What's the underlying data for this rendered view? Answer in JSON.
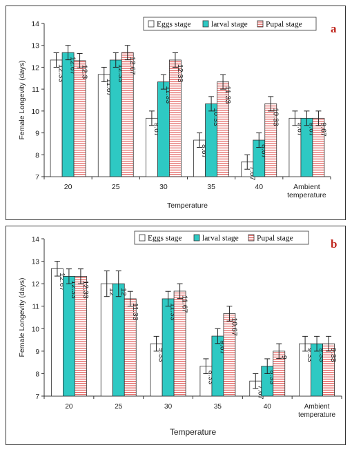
{
  "chart_data": [
    {
      "type": "bar",
      "panel_label": "a",
      "ylabel": "Female Longevity (days)",
      "xlabel": "Temperature",
      "ylim": [
        7,
        14
      ],
      "yticks": [
        "7",
        "8",
        "9",
        "10",
        "11",
        "12",
        "13",
        "14"
      ],
      "categories": [
        "20",
        "25",
        "30",
        "35",
        "40",
        [
          "Ambient",
          "temperature"
        ]
      ],
      "series": [
        {
          "name": "Eggs stage",
          "values": [
            12.33,
            11.67,
            9.67,
            8.67,
            7.67,
            9.67
          ],
          "errors": [
            0.33,
            0.33,
            0.33,
            0.33,
            0.33,
            0.33
          ],
          "labels": [
            "12.33",
            "11.67",
            "9.67",
            "8.67",
            "7.67",
            "9.67"
          ]
        },
        {
          "name": "larval stage",
          "values": [
            12.67,
            12.33,
            11.33,
            10.33,
            8.67,
            9.67
          ],
          "errors": [
            0.33,
            0.33,
            0.33,
            0.33,
            0.33,
            0.33
          ],
          "labels": [
            "12.67",
            "12.33",
            "11.33",
            "10.33",
            "8.67",
            "9.67"
          ]
        },
        {
          "name": "Pupal stage",
          "values": [
            12.3,
            12.67,
            12.33,
            11.33,
            10.33,
            9.67
          ],
          "errors": [
            0.33,
            0.33,
            0.33,
            0.33,
            0.33,
            0.33
          ],
          "labels": [
            "12.3",
            "12.67",
            "12.33",
            "11.33",
            "10.33",
            "9.67"
          ]
        }
      ],
      "legend_position": "top-right",
      "grid": false,
      "colors": {
        "eggs": "#ffffff",
        "larval": "#2ec9c3",
        "pupal_stripe": "#e0504d",
        "bar_edge": "#333333",
        "panel_letter": "#c0271f"
      }
    },
    {
      "type": "bar",
      "panel_label": "b",
      "ylabel": "Female Longevity (days)",
      "xlabel": "Temperature",
      "ylim": [
        7,
        14
      ],
      "yticks": [
        "7",
        "8",
        "9",
        "10",
        "11",
        "12",
        "13",
        "14"
      ],
      "categories": [
        "20",
        "25",
        "30",
        "35",
        "40",
        [
          "Ambient",
          "temperature"
        ]
      ],
      "series": [
        {
          "name": "Eggs stage",
          "values": [
            12.67,
            12,
            9.33,
            8.33,
            7.67,
            9.33
          ],
          "errors": [
            0.33,
            0.57,
            0.33,
            0.33,
            0.33,
            0.33
          ],
          "labels": [
            "12.67",
            "12",
            "9.33",
            "8.33",
            "7.67",
            "9.33"
          ]
        },
        {
          "name": "larval stage",
          "values": [
            12.33,
            12,
            11.33,
            9.67,
            8.33,
            9.33
          ],
          "errors": [
            0.33,
            0.57,
            0.33,
            0.33,
            0.33,
            0.33
          ],
          "labels": [
            "12.33",
            "12",
            "11.33",
            "9.67",
            "8.33",
            "9.33"
          ]
        },
        {
          "name": "Pupal stage",
          "values": [
            12.33,
            11.33,
            11.67,
            10.67,
            9,
            9.33
          ],
          "errors": [
            0.33,
            0.33,
            0.33,
            0.33,
            0.33,
            0.33
          ],
          "labels": [
            "12.33",
            "11.33",
            "11.67",
            "10.67",
            "9",
            "9.33"
          ]
        }
      ],
      "legend_position": "top-right",
      "grid": false,
      "colors": {
        "eggs": "#ffffff",
        "larval": "#2ec9c3",
        "pupal_stripe": "#e0504d",
        "bar_edge": "#333333",
        "panel_letter": "#c0271f"
      }
    }
  ]
}
